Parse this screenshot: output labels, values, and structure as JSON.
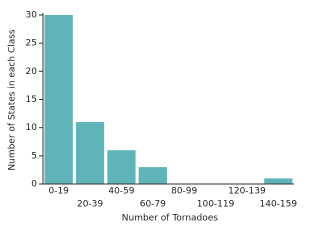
{
  "chart_data": {
    "type": "bar",
    "x_label": "Number of Tornadoes",
    "y_label": "Number of States in each Class",
    "categories": [
      "0-19",
      "20-39",
      "40-59",
      "60-79",
      "80-99",
      "100-119",
      "120-139",
      "140-159"
    ],
    "values": [
      30,
      11,
      6,
      3,
      0,
      0,
      0,
      1
    ],
    "color": "#5fb4b9",
    "ylim": [
      0,
      30
    ],
    "yticks": [
      0,
      5,
      10,
      15,
      20,
      25,
      30
    ],
    "grid": false
  }
}
